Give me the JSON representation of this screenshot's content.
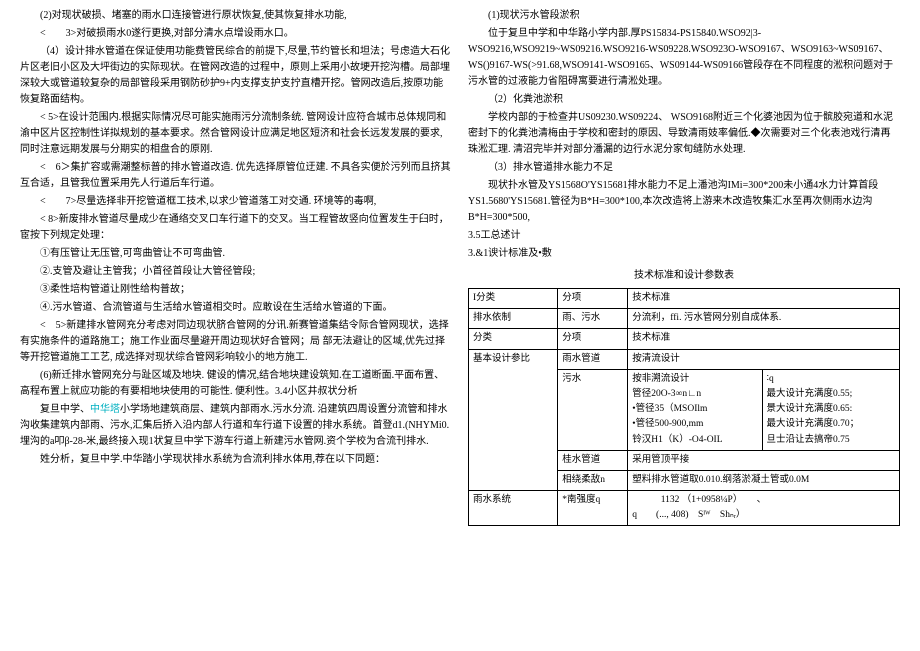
{
  "left": {
    "p2": "(2)对现状破损、堵塞的雨水口连接管进行原状恢复,使其恢复排水功能,",
    "p3": "<　　3>对破损雨水0遂行更换,对部分清水点增设雨水口。",
    "p4_a": "（4）设计排水管道在保证使用功能费管民综合的前提下,尽量,节约管长和坦法；号虑造大石化片区老旧小区及大坪街边的实际现状。在管网改造的过程中，原则上采用小故埂开挖沟槽。局部埋深较大或管道较复杂的局部管段采用钢防砂护9+内支撑支护支拧直槽开挖。管网改造后,按原功能恢复路面结构。",
    "p5": "< 5>在设计范围内.根据实际情况尽可能实施雨污分流制条统. 管网设计应符合城市总体规同和渝中区片区控制性详拟规划的基本要求。然合管网设计应满足地区短济和社会长远发发展的要求,同时注意远期发展与分期实的相盘合的原刚.",
    "p6": "<　6＞集扩容或需潮整标普的排水管道改造. 优先选择原管位迂建. 不具各实便於污列而且挤其互合适，且管我位置采用先人行道后车行道。",
    "p7": "<　　7>尽量选择非开挖管道框工技术,以求少管道落工对交通. 环境等的毒啊,",
    "p8": "< 8>新废排水管道尽量成少在通络交叉口车行道下的交叉。当工程管故竖向位置发生于臼时，宦按下列规定处理：",
    "c1": "①有压管让无压管,可弯曲管让不可弯曲管.",
    "c2": "②.支管及避让主管我；小首径首段让大管径管段;",
    "c3": "③柔性培构管道让刚性给构普故；",
    "c4": "④.污水管道、合流管道与生活给水管道相交时。应敢设在生活给水管道的下面。",
    "p9": "<　5>新建排水管网充分考虑对同边现状脐合管网的分讯.新赛管道集结令际合管网现状，选择有实施条件的道路施工；施工作业面尽量避开周边现状好合管网；局 部无法避让的区域,优先过择等开挖管道施工工艺, 成选择对现状综合管网彩响较小的地方施工.",
    "p10": "(6)新迁排水管网充分与趾区域及地块. 健设的情况,结合地块建设筑知.在工道断面.平面布置、高程布置上就应功能的有要相地块使用的可能性. 便利性。3.4小区井叔状分析",
    "p11_a": "复旦中学、",
    "p11_cyan": "中华塔",
    "p11_b": "小学场地建筑商层、建筑内部雨水.污水分流. 沿建筑四周设置分流管和排水沟收集建筑内部雨、污水,汇集后挢入沿内部人行道和车行道下设置的排水系统。首登d1.(NHYMi0.埋沟的a叩β-28-米,最终接入现1状复旦中学下游车行道上新建污水管网.资个学校为合流刊排水.",
    "p12": "姓分析，复旦中学.中华踏小学现状排水系统为合流利排水体用,荐在以下同题："
  },
  "right": {
    "r1": "(1)现状污水管段淤积",
    "r2": "位于复旦中学和中华路小学内部.厚PS15834-PS15840.WSO92|3-WSO9216,WSO9219~WS09216.WSO9216-WS09228.WSO923O-WSO9167、WSO9163~WS09167、WS()9167-WS(>91.68,WSO9141-WSO9165、WS09144-WS09166管段存在不同程度的淞积问题对于污水管的过液能力省阻碍寓要进行清淞处理。",
    "r3": "（2）化粪池淤积",
    "r4": "学校内部的于检查井US09230.WS09224、 WSO9168附近三个化婆池因为位于髌胶宛道和水泥密封下的化粪池清梅由于学校和密封的原因、导致清雨妓率偏低.◆次需要对三个化表池戏行清再珠淞汇理. 清沼完毕并对部分潘漏的边行水泥分家旬缝防水处理.",
    "r5": "（3）排水管道排水能力不足",
    "r6": "现状扑水管及YS1568O'YS15681排水能力不足上潘池沟IMi=300*200未小通4水力计算首段YS1.5680'YS15681.管径为B*H=300*100,本次改造将上游来木改造牧集汇水至再次侧雨水边沟B*H=300*500,",
    "r7": "3.5工总述计",
    "r8": "3.&1谀计标准及•敷",
    "tblTitle": "技术标准和设计参数表",
    "table": {
      "rows": [
        [
          "I分类",
          "分项",
          "技术标准",
          "",
          ""
        ],
        [
          "排水依制",
          "雨、污水",
          "分流利，ffi. 污水管网分别自成体系.",
          "",
          ""
        ],
        [
          "分类",
          "分项",
          "技术标准",
          "",
          ""
        ],
        [
          "",
          "雨水管道",
          "按清流设计",
          "",
          ""
        ],
        [
          "基本设计参比",
          "污水",
          "按非溯流设计\n管径20O-3∞n∟n\n•管径35（MSOIlm\n•管径500-900,mm\n铃汉H1（K）-O4-OIL",
          "∶q\n最大设计充满度0.55;\n景大设计充满度0.65:\n最大设计充满度0.70；\n旦士沿让去搞帝0.75",
          ""
        ],
        [
          "",
          "桂水管道",
          "采用管顶平接",
          "",
          ""
        ],
        [
          "",
          "相绕柔敌n",
          "塑料排水管道取0.010.纲落淤凝土管或0.0M",
          "",
          ""
        ],
        [
          "雨水系统",
          "*南强度q",
          "　　　1132 （1+0958¼P）　　、\nq　　(..., 408)　Sᴵᵂ　Shₙᵣ）",
          "",
          ""
        ]
      ],
      "rowspans": {}
    }
  }
}
